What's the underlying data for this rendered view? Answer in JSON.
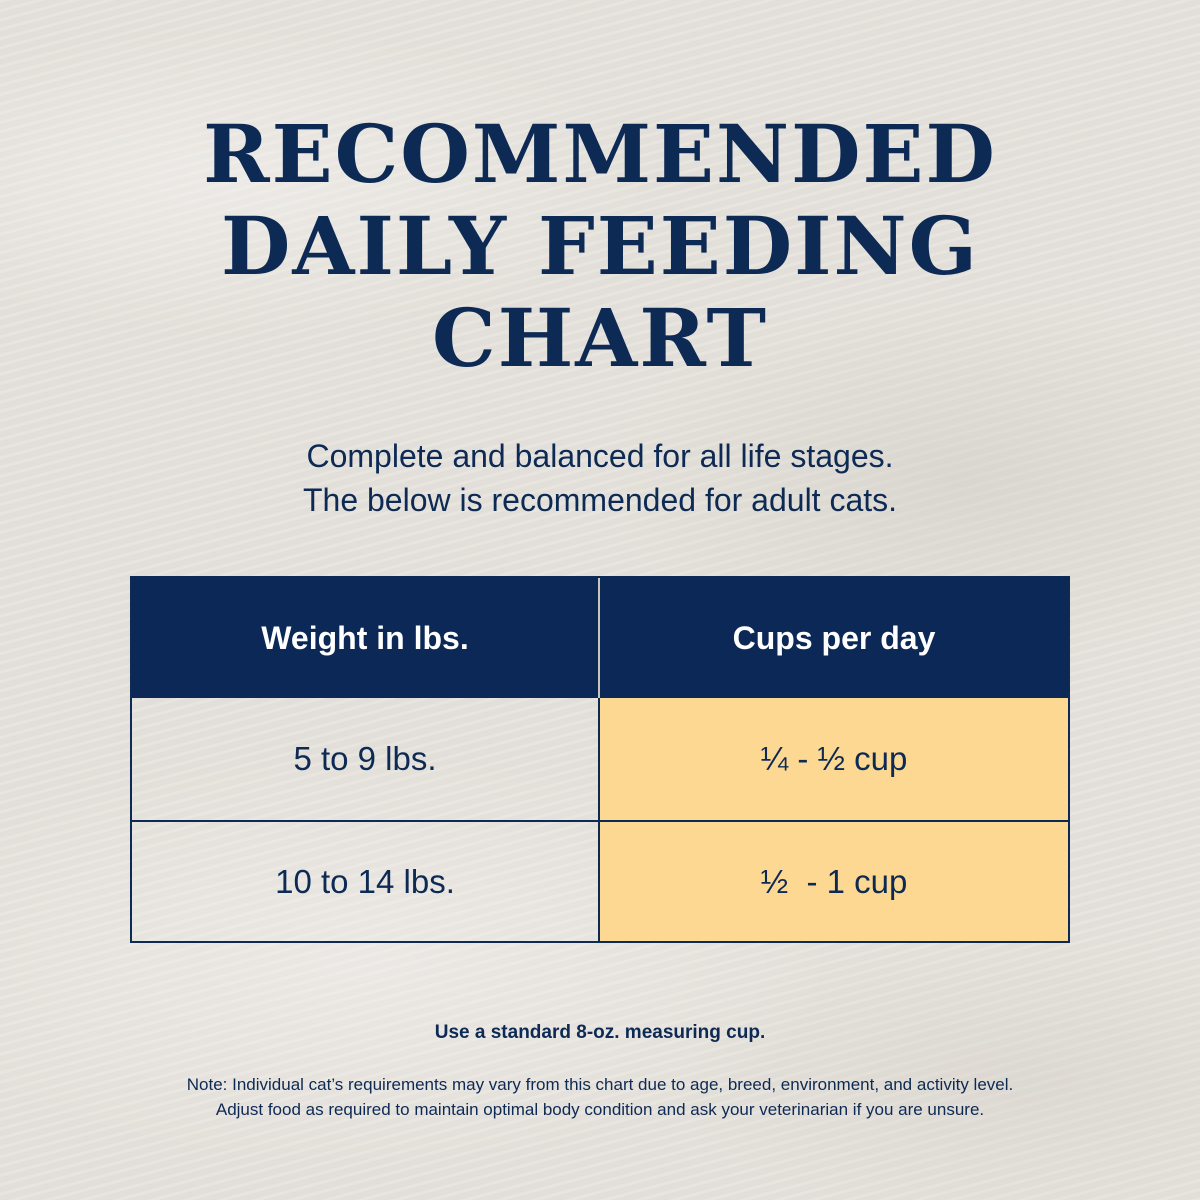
{
  "title": {
    "line1": "RECOMMENDED",
    "line2": "DAILY FEEDING",
    "line3": "CHART"
  },
  "subtitle": {
    "line1": "Complete and balanced for all life stages.",
    "line2": "The below is recommended for adult cats."
  },
  "table": {
    "headers": [
      "Weight in lbs.",
      "Cups per day"
    ],
    "rows": [
      {
        "weight": "5 to 9 lbs.",
        "cups": "¼ - ½ cup"
      },
      {
        "weight": "10 to 14 lbs.",
        "cups": "½  - 1 cup"
      }
    ]
  },
  "notes": {
    "measuring": "Use a standard 8-oz. measuring cup.",
    "note_line1": "Note: Individual cat’s requirements may vary from this chart due to age, breed, environment, and activity level.",
    "note_line2": "Adjust food as required to maintain optimal body condition and ask your veterinarian if you are unsure."
  },
  "colors": {
    "navy": "#0b2856",
    "highlight": "#fdd893",
    "background": "#e6e2dc"
  }
}
